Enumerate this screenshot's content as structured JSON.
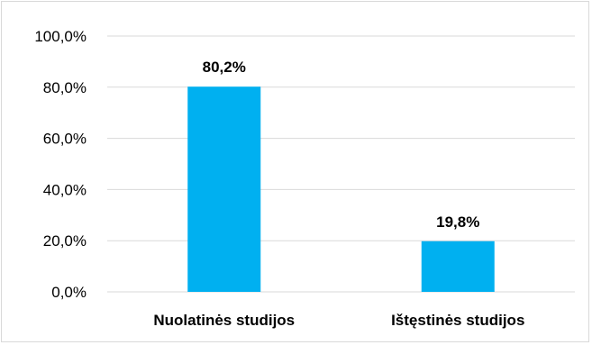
{
  "chart_data": {
    "type": "bar",
    "categories": [
      "Nuolatinės studijos",
      "Ištęstinės studijos"
    ],
    "values": [
      80.2,
      19.8
    ],
    "data_labels": [
      "80,2%",
      "19,8%"
    ],
    "title": "",
    "xlabel": "",
    "ylabel": "",
    "ylim": [
      0,
      100
    ],
    "yticks": [
      0,
      20,
      40,
      60,
      80,
      100
    ],
    "ytick_labels": [
      "0,0%",
      "20,0%",
      "40,0%",
      "60,0%",
      "80,0%",
      "100,0%"
    ],
    "grid": true,
    "legend": "none",
    "bar_color": "#00b0f0",
    "grid_color": "#d9d9d9"
  }
}
